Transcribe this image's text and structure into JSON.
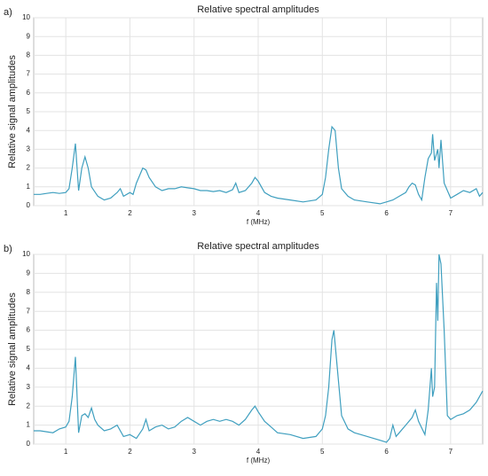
{
  "chart_data": [
    {
      "type": "line",
      "panel_label": "a)",
      "title": "Relative spectral amplitudes",
      "xlabel": "f (MHz)",
      "ylabel": "Relative signal amplitudes",
      "xlim": [
        0.5,
        7.5
      ],
      "xticks": [
        1,
        2,
        3,
        4,
        5,
        6,
        7
      ],
      "ylim": [
        0,
        10
      ],
      "yticks": [
        0,
        1,
        2,
        3,
        4,
        5,
        6,
        7,
        8,
        9,
        10
      ],
      "grid": true,
      "series": [
        {
          "name": "a",
          "color": "#3f9fbf",
          "x": [
            0.5,
            0.6,
            0.7,
            0.8,
            0.9,
            1.0,
            1.05,
            1.1,
            1.15,
            1.2,
            1.25,
            1.3,
            1.35,
            1.4,
            1.5,
            1.6,
            1.7,
            1.8,
            1.85,
            1.9,
            2.0,
            2.05,
            2.1,
            2.15,
            2.2,
            2.25,
            2.3,
            2.4,
            2.5,
            2.6,
            2.7,
            2.8,
            2.9,
            3.0,
            3.1,
            3.2,
            3.3,
            3.4,
            3.5,
            3.6,
            3.65,
            3.7,
            3.8,
            3.9,
            3.95,
            4.0,
            4.1,
            4.2,
            4.3,
            4.5,
            4.7,
            4.9,
            5.0,
            5.05,
            5.1,
            5.15,
            5.2,
            5.25,
            5.3,
            5.4,
            5.5,
            5.7,
            5.9,
            6.0,
            6.1,
            6.2,
            6.3,
            6.35,
            6.4,
            6.45,
            6.5,
            6.55,
            6.6,
            6.65,
            6.7,
            6.72,
            6.75,
            6.8,
            6.82,
            6.85,
            6.9,
            7.0,
            7.1,
            7.2,
            7.3,
            7.4,
            7.45,
            7.5
          ],
          "values": [
            0.6,
            0.6,
            0.65,
            0.7,
            0.65,
            0.7,
            0.9,
            2.0,
            3.3,
            0.8,
            2.0,
            2.6,
            2.0,
            1.0,
            0.5,
            0.3,
            0.4,
            0.7,
            0.9,
            0.5,
            0.7,
            0.6,
            1.2,
            1.6,
            2.0,
            1.9,
            1.5,
            1.0,
            0.8,
            0.9,
            0.9,
            1.0,
            0.95,
            0.9,
            0.8,
            0.8,
            0.75,
            0.8,
            0.7,
            0.85,
            1.2,
            0.7,
            0.8,
            1.2,
            1.5,
            1.3,
            0.7,
            0.5,
            0.4,
            0.3,
            0.2,
            0.3,
            0.6,
            1.5,
            3.0,
            4.2,
            4.0,
            2.0,
            0.9,
            0.5,
            0.3,
            0.2,
            0.1,
            0.2,
            0.3,
            0.5,
            0.7,
            1.0,
            1.2,
            1.1,
            0.6,
            0.3,
            1.5,
            2.5,
            2.8,
            3.8,
            2.4,
            3.0,
            2.0,
            3.5,
            1.2,
            0.4,
            0.6,
            0.8,
            0.7,
            0.9,
            0.5,
            0.7
          ]
        }
      ]
    },
    {
      "type": "line",
      "panel_label": "b)",
      "title": "Relative spectral amplitudes",
      "xlabel": "f (MHz)",
      "ylabel": "Relative signal amplitudes",
      "xlim": [
        0.5,
        7.5
      ],
      "xticks": [
        1,
        2,
        3,
        4,
        5,
        6,
        7
      ],
      "ylim": [
        0,
        10
      ],
      "yticks": [
        0,
        1,
        2,
        3,
        4,
        5,
        6,
        7,
        8,
        9,
        10
      ],
      "grid": true,
      "series": [
        {
          "name": "b",
          "color": "#3f9fbf",
          "x": [
            0.5,
            0.6,
            0.7,
            0.8,
            0.9,
            1.0,
            1.05,
            1.1,
            1.15,
            1.2,
            1.25,
            1.3,
            1.35,
            1.4,
            1.45,
            1.5,
            1.6,
            1.7,
            1.8,
            1.9,
            2.0,
            2.1,
            2.2,
            2.25,
            2.3,
            2.4,
            2.5,
            2.6,
            2.7,
            2.8,
            2.9,
            3.0,
            3.1,
            3.2,
            3.3,
            3.4,
            3.5,
            3.6,
            3.7,
            3.8,
            3.9,
            3.95,
            4.0,
            4.1,
            4.2,
            4.3,
            4.5,
            4.7,
            4.9,
            5.0,
            5.05,
            5.1,
            5.15,
            5.18,
            5.22,
            5.3,
            5.4,
            5.5,
            5.6,
            5.7,
            5.8,
            5.9,
            6.0,
            6.05,
            6.1,
            6.15,
            6.2,
            6.3,
            6.4,
            6.45,
            6.5,
            6.6,
            6.65,
            6.7,
            6.72,
            6.75,
            6.78,
            6.8,
            6.82,
            6.85,
            6.9,
            6.95,
            7.0,
            7.1,
            7.2,
            7.3,
            7.4,
            7.5
          ],
          "values": [
            0.7,
            0.7,
            0.65,
            0.6,
            0.8,
            0.9,
            1.2,
            2.5,
            4.6,
            0.6,
            1.5,
            1.6,
            1.4,
            1.9,
            1.3,
            1.0,
            0.7,
            0.8,
            1.0,
            0.4,
            0.5,
            0.3,
            0.8,
            1.3,
            0.7,
            0.9,
            1.0,
            0.8,
            0.9,
            1.2,
            1.4,
            1.2,
            1.0,
            1.2,
            1.3,
            1.2,
            1.3,
            1.2,
            1.0,
            1.3,
            1.8,
            2.0,
            1.7,
            1.2,
            0.9,
            0.6,
            0.5,
            0.3,
            0.4,
            0.8,
            1.5,
            3.0,
            5.5,
            6.0,
            4.5,
            1.5,
            0.8,
            0.6,
            0.5,
            0.4,
            0.3,
            0.2,
            0.1,
            0.3,
            1.0,
            0.4,
            0.6,
            1.0,
            1.4,
            1.8,
            1.2,
            0.5,
            1.8,
            4.0,
            2.5,
            3.0,
            8.5,
            6.5,
            10.0,
            9.5,
            6.0,
            1.5,
            1.3,
            1.5,
            1.6,
            1.8,
            2.2,
            2.8
          ]
        }
      ]
    }
  ]
}
